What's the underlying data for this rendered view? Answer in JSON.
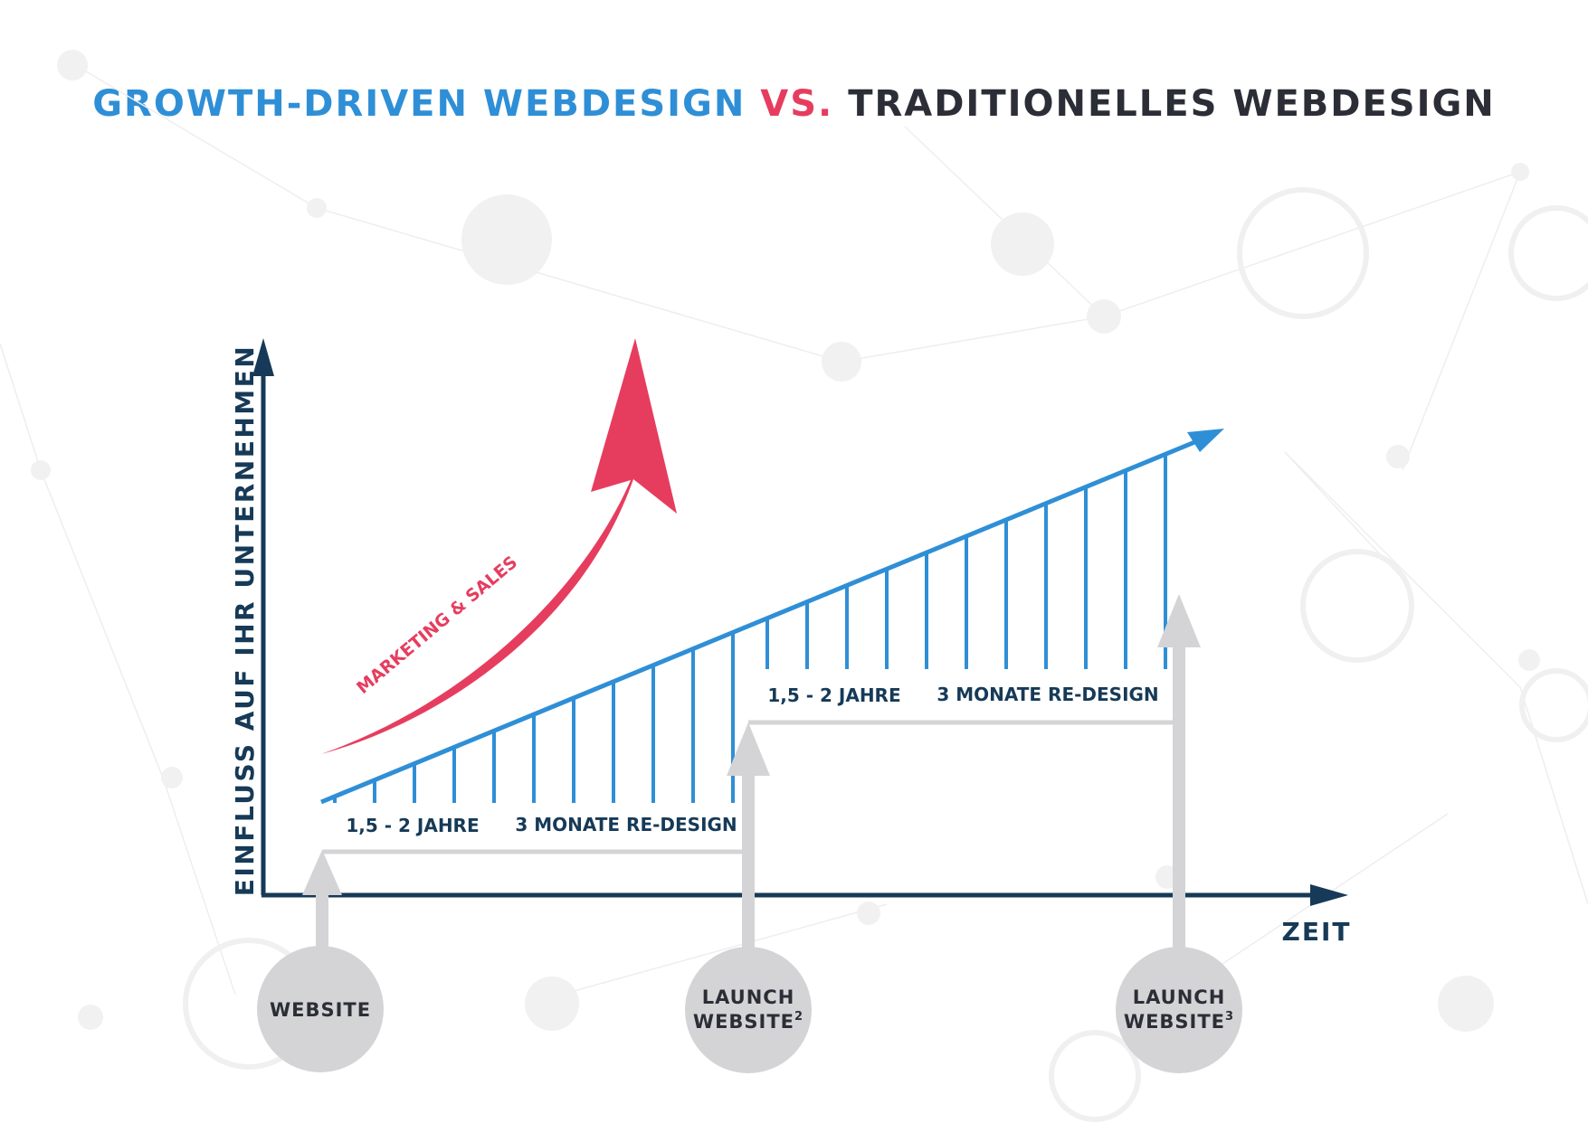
{
  "title": {
    "part1": "GROWTH-DRIVEN WEBDESIGN",
    "part2": "VS.",
    "part3": "TRADITIONELLES WEBDESIGN"
  },
  "axes": {
    "y_label": "EINFLUSS AUF IHR UNTERNEHMEN",
    "x_label": "ZEIT"
  },
  "growth_arrow_label": "MARKETING & SALES",
  "phase1": {
    "duration": "1,5 - 2 JAHRE",
    "redesign": "3 MONATE RE-DESIGN"
  },
  "phase2": {
    "duration": "1,5 - 2 JAHRE",
    "redesign": "3 MONATE RE-DESIGN"
  },
  "milestones": [
    {
      "line1": "WEBSITE",
      "line2": "",
      "sup": ""
    },
    {
      "line1": "LAUNCH",
      "line2": "WEBSITE",
      "sup": "2"
    },
    {
      "line1": "LAUNCH",
      "line2": "WEBSITE",
      "sup": "3"
    }
  ],
  "colors": {
    "blue": "#2f8fd6",
    "red": "#e63d5f",
    "navy": "#163a57",
    "gray": "#d4d4d6",
    "text_dark": "#2b2e36"
  }
}
